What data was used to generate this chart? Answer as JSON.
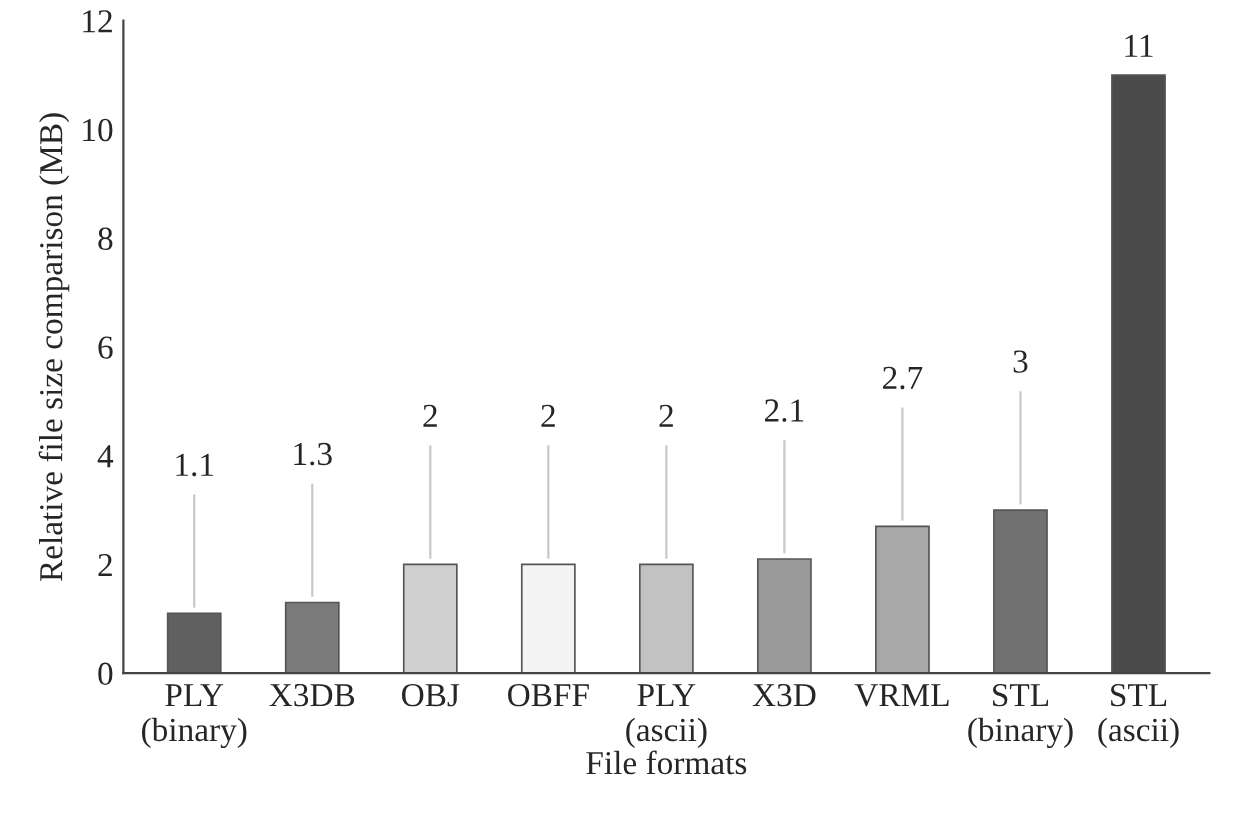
{
  "chart_data": {
    "type": "bar",
    "xlabel": "File formats",
    "ylabel": "Relative file size comparison (MB)",
    "categories": [
      "PLY\n(binary)",
      "X3DB",
      "OBJ",
      "OBFF",
      "PLY\n(ascii)",
      "X3D",
      "VRML",
      "STL\n(binary)",
      "STL\n(ascii)"
    ],
    "values": [
      1.1,
      1.3,
      2,
      2,
      2,
      2.1,
      2.7,
      3,
      11
    ],
    "colors": [
      "#606060",
      "#7b7b7b",
      "#d0d0d0",
      "#f4f4f4",
      "#c2c2c2",
      "#9a9a9a",
      "#a8a8a8",
      "#717171",
      "#4b4b4b"
    ],
    "ylim": [
      0,
      12
    ],
    "yticks": [
      0,
      2,
      4,
      6,
      8,
      10,
      12
    ],
    "grid": false,
    "annotations": [
      {
        "text": "1.1",
        "x": "PLY\n(binary)",
        "y": 1.1
      },
      {
        "text": "1.3",
        "x": "X3DB",
        "y": 1.3
      },
      {
        "text": "2",
        "x": "OBJ",
        "y": 2
      },
      {
        "text": "2",
        "x": "OBFF",
        "y": 2
      },
      {
        "text": "2",
        "x": "PLY\n(ascii)",
        "y": 2
      },
      {
        "text": "2.1",
        "x": "X3D",
        "y": 2.1
      },
      {
        "text": "2.7",
        "x": "VRML",
        "y": 2.7
      },
      {
        "text": "3",
        "x": "STL\n(binary)",
        "y": 3
      },
      {
        "text": "11",
        "x": "STL\n(ascii)",
        "y": 11
      }
    ]
  }
}
